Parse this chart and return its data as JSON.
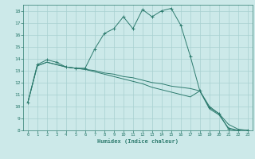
{
  "xlabel": "Humidex (Indice chaleur)",
  "ylabel": "",
  "xlim": [
    -0.5,
    23.5
  ],
  "ylim": [
    8,
    18.5
  ],
  "yticks": [
    8,
    9,
    10,
    11,
    12,
    13,
    14,
    15,
    16,
    17,
    18
  ],
  "xticks": [
    0,
    1,
    2,
    3,
    4,
    5,
    6,
    7,
    8,
    9,
    10,
    11,
    12,
    13,
    14,
    15,
    16,
    17,
    18,
    19,
    20,
    21,
    22,
    23
  ],
  "bg_color": "#cce9e9",
  "line_color": "#2d7b6e",
  "grid_color": "#a8d0d0",
  "lines": [
    {
      "x": [
        0,
        1,
        2,
        3,
        4,
        5,
        6,
        7,
        8,
        9,
        10,
        11,
        12,
        13,
        14,
        15,
        16,
        17,
        18,
        19,
        20,
        21,
        22,
        23
      ],
      "y": [
        10.3,
        13.5,
        13.9,
        13.7,
        13.3,
        13.2,
        13.2,
        14.8,
        16.1,
        16.5,
        17.5,
        16.5,
        18.1,
        17.5,
        18.0,
        18.2,
        16.8,
        14.2,
        11.3,
        9.9,
        9.4,
        8.1,
        8.0,
        8.0
      ],
      "marker": "+"
    },
    {
      "x": [
        0,
        1,
        2,
        3,
        4,
        5,
        6,
        7,
        8,
        9,
        10,
        11,
        12,
        13,
        14,
        15,
        16,
        17,
        18,
        19,
        20,
        21,
        22,
        23
      ],
      "y": [
        10.3,
        13.4,
        13.7,
        13.5,
        13.3,
        13.2,
        13.1,
        13.0,
        12.8,
        12.7,
        12.5,
        12.4,
        12.2,
        12.0,
        11.9,
        11.7,
        11.6,
        11.5,
        11.3,
        10.0,
        9.4,
        8.5,
        8.1,
        8.0
      ],
      "marker": null
    },
    {
      "x": [
        0,
        1,
        2,
        3,
        4,
        5,
        6,
        7,
        8,
        9,
        10,
        11,
        12,
        13,
        14,
        15,
        16,
        17,
        18,
        19,
        20,
        21,
        22,
        23
      ],
      "y": [
        10.3,
        13.4,
        13.7,
        13.5,
        13.3,
        13.2,
        13.1,
        12.9,
        12.7,
        12.5,
        12.3,
        12.1,
        11.9,
        11.6,
        11.4,
        11.2,
        11.0,
        10.8,
        11.3,
        9.8,
        9.3,
        8.2,
        8.0,
        8.0
      ],
      "marker": null
    }
  ]
}
